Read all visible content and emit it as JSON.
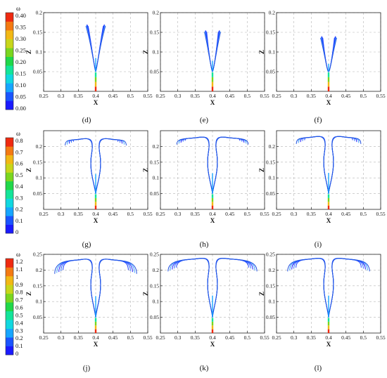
{
  "chart_data": [
    {
      "panel": "row-1",
      "type": "colorbar-legend",
      "legend_title": "ω",
      "levels": [
        "0.00",
        "0.05",
        "0.10",
        "0.15",
        "0.20",
        "0.25",
        "0.30",
        "0.35",
        "0.40"
      ],
      "colors": [
        "#1a1aff",
        "#1a55ff",
        "#16a6ff",
        "#10d8e0",
        "#13e59a",
        "#20d84a",
        "#7ad61f",
        "#c8d61a",
        "#f2b814",
        "#f47a12",
        "#ef2a10"
      ]
    },
    {
      "panel": "(d)",
      "type": "vortex-lines",
      "xlabel": "X",
      "ylabel": "Z",
      "xlim": [
        0.25,
        0.55
      ],
      "ylim": [
        0,
        0.2
      ],
      "xticks": [
        "0.25",
        "0.3",
        "0.35",
        "0.4",
        "0.45",
        "0.5",
        "0.55"
      ],
      "yticks": [
        "0.05",
        "0.1",
        "0.15",
        "0.2"
      ],
      "base_x": 0.4,
      "top_z": 0.17,
      "spread": 0.025,
      "curl": 0,
      "wings": 0
    },
    {
      "panel": "(e)",
      "type": "vortex-lines",
      "xlabel": "X",
      "ylabel": "Z",
      "xlim": [
        0.25,
        0.55
      ],
      "ylim": [
        0,
        0.2
      ],
      "xticks": [
        "0.25",
        "0.3",
        "0.35",
        "0.4",
        "0.45",
        "0.5",
        "0.55"
      ],
      "yticks": [
        "0.05",
        "0.1",
        "0.15",
        "0.2"
      ],
      "base_x": 0.4,
      "top_z": 0.155,
      "spread": 0.02,
      "curl": 0,
      "wings": 0
    },
    {
      "panel": "(f)",
      "type": "vortex-lines",
      "xlabel": "X",
      "ylabel": "Z",
      "xlim": [
        0.25,
        0.55
      ],
      "ylim": [
        0,
        0.2
      ],
      "xticks": [
        "0.25",
        "0.3",
        "0.35",
        "0.4",
        "0.45",
        "0.5",
        "0.55"
      ],
      "yticks": [
        "0.05",
        "0.1",
        "0.15",
        "0.2"
      ],
      "base_x": 0.4,
      "top_z": 0.14,
      "spread": 0.02,
      "curl": 0,
      "wings": 0
    },
    {
      "panel": "row-2",
      "type": "colorbar-legend",
      "legend_title": "ω",
      "levels": [
        "0",
        "0.1",
        "0.2",
        "0.3",
        "0.4",
        "0.5",
        "0.6",
        "0.7",
        "0.8"
      ],
      "colors": [
        "#1a1aff",
        "#1a55ff",
        "#16a6ff",
        "#10d8e0",
        "#13e59a",
        "#20d84a",
        "#7ad61f",
        "#c8d61a",
        "#f2b814",
        "#f47a12",
        "#ef2a10"
      ]
    },
    {
      "panel": "(g)",
      "type": "vortex-lines",
      "xlabel": "X",
      "ylabel": "Z",
      "xlim": [
        0.25,
        0.55
      ],
      "ylim": [
        0,
        0.25
      ],
      "xticks": [
        "0.25",
        "0.3",
        "0.35",
        "0.4",
        "0.45",
        "0.5",
        "0.55"
      ],
      "yticks": [
        "0.05",
        "0.1",
        "0.15",
        "0.2"
      ],
      "base_x": 0.4,
      "top_z": 0.225,
      "spread": 0.07,
      "curl": 0.01,
      "wings": 1
    },
    {
      "panel": "(h)",
      "type": "vortex-lines",
      "xlabel": "X",
      "ylabel": "Z",
      "xlim": [
        0.25,
        0.55
      ],
      "ylim": [
        0,
        0.25
      ],
      "xticks": [
        "0.25",
        "0.3",
        "0.35",
        "0.4",
        "0.45",
        "0.5",
        "0.55"
      ],
      "yticks": [
        "0.05",
        "0.1",
        "0.15",
        "0.2"
      ],
      "base_x": 0.4,
      "top_z": 0.23,
      "spread": 0.085,
      "curl": 0.012,
      "wings": 1
    },
    {
      "panel": "(i)",
      "type": "vortex-lines",
      "xlabel": "X",
      "ylabel": "Z",
      "xlim": [
        0.25,
        0.55
      ],
      "ylim": [
        0,
        0.25
      ],
      "xticks": [
        "0.25",
        "0.3",
        "0.35",
        "0.4",
        "0.45",
        "0.5",
        "0.55"
      ],
      "yticks": [
        "0.05",
        "0.1",
        "0.15",
        "0.2"
      ],
      "base_x": 0.4,
      "top_z": 0.232,
      "spread": 0.075,
      "curl": 0.012,
      "wings": 1
    },
    {
      "panel": "row-3",
      "type": "colorbar-legend",
      "legend_title": "ω",
      "levels": [
        "0",
        "0.1",
        "0.2",
        "0.3",
        "0.4",
        "0.5",
        "0.6",
        "0.7",
        "0.8",
        "0.9",
        "1",
        "1.1",
        "1.2"
      ],
      "colors": [
        "#1a1aff",
        "#1a55ff",
        "#16a6ff",
        "#10d8e0",
        "#13e59a",
        "#20d84a",
        "#7ad61f",
        "#c8d61a",
        "#f2b814",
        "#f47a12",
        "#ef2a10"
      ]
    },
    {
      "panel": "(j)",
      "type": "vortex-lines",
      "xlabel": "X",
      "ylabel": "Z",
      "xlim": [
        0.25,
        0.55
      ],
      "ylim": [
        0,
        0.25
      ],
      "xticks": [
        "0.25",
        "0.3",
        "0.35",
        "0.4",
        "0.45",
        "0.5",
        "0.55"
      ],
      "yticks": [
        "0.05",
        "0.1",
        "0.15",
        "0.2",
        "0.25"
      ],
      "base_x": 0.4,
      "top_z": 0.235,
      "spread": 0.1,
      "curl": 0.035,
      "wings": 2
    },
    {
      "panel": "(k)",
      "type": "vortex-lines",
      "xlabel": "X",
      "ylabel": "Z",
      "xlim": [
        0.25,
        0.55
      ],
      "ylim": [
        0,
        0.25
      ],
      "xticks": [
        "0.25",
        "0.3",
        "0.35",
        "0.4",
        "0.45",
        "0.5",
        "0.55"
      ],
      "yticks": [
        "0.05",
        "0.1",
        "0.15",
        "0.2",
        "0.25"
      ],
      "base_x": 0.4,
      "top_z": 0.238,
      "spread": 0.11,
      "curl": 0.03,
      "wings": 2
    },
    {
      "panel": "(l)",
      "type": "vortex-lines",
      "xlabel": "X",
      "ylabel": "Z",
      "xlim": [
        0.25,
        0.55
      ],
      "ylim": [
        0,
        0.25
      ],
      "xticks": [
        "0.25",
        "0.3",
        "0.35",
        "0.4",
        "0.45",
        "0.5",
        "0.55"
      ],
      "yticks": [
        "0.05",
        "0.1",
        "0.15",
        "0.2",
        "0.25"
      ],
      "base_x": 0.4,
      "top_z": 0.238,
      "spread": 0.1,
      "curl": 0.03,
      "wings": 2
    }
  ]
}
